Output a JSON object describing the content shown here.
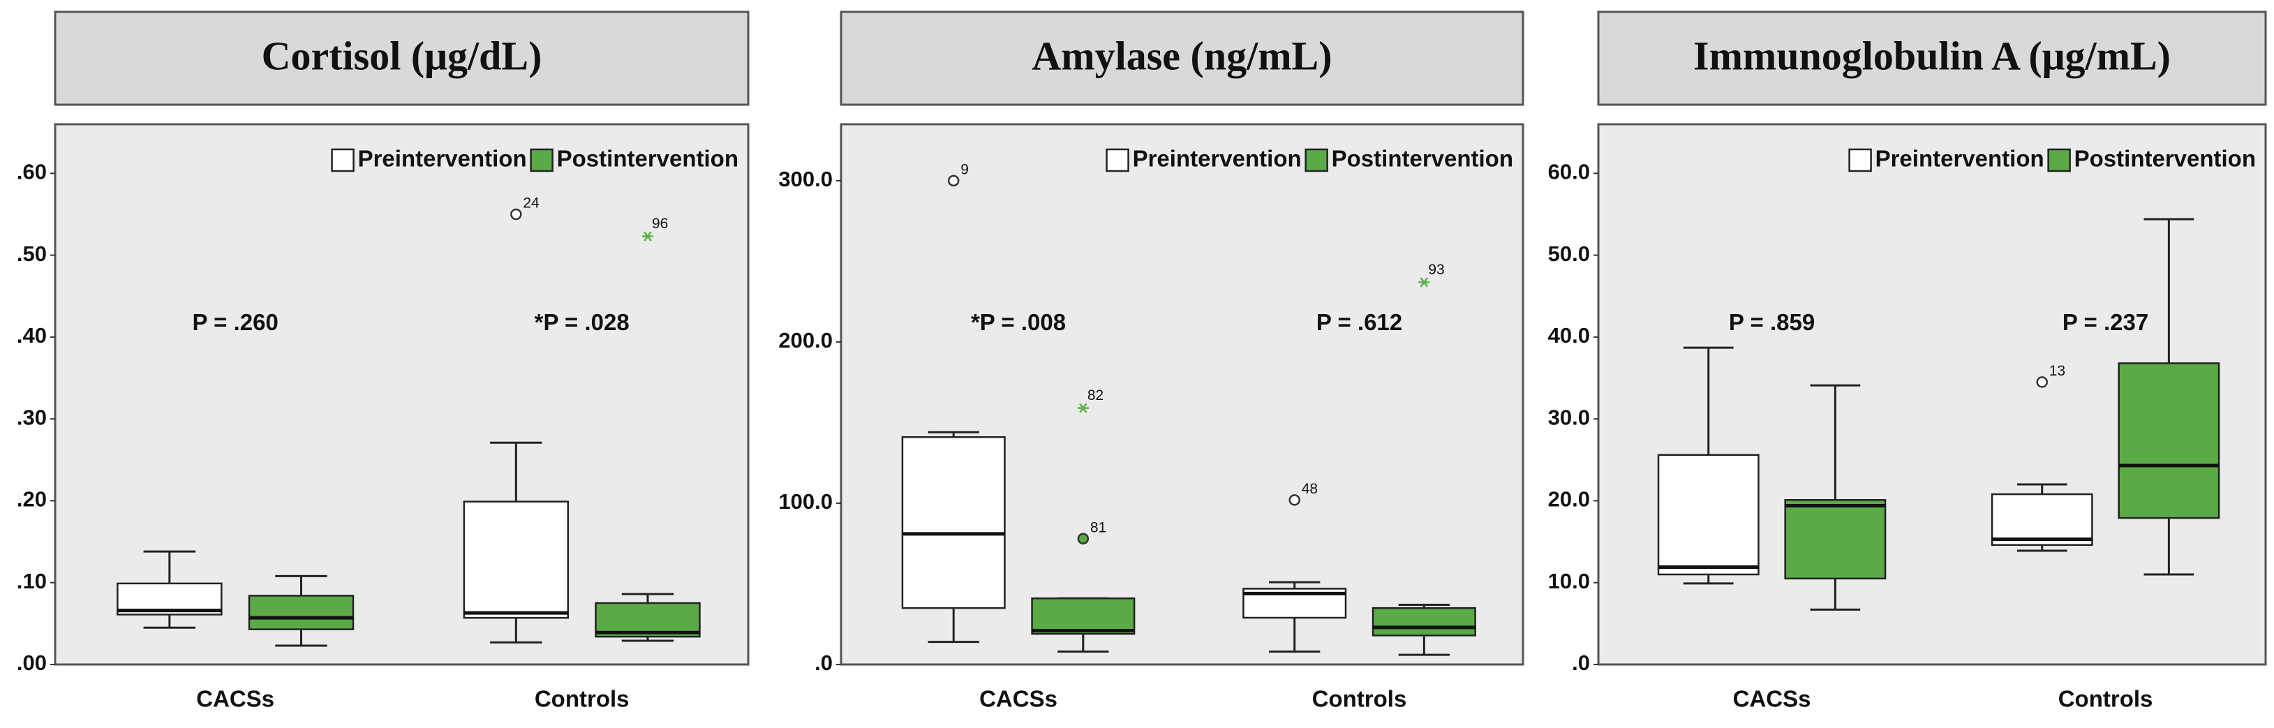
{
  "chart_data": [
    {
      "type": "box",
      "title": "Cortisol (μg/dL)",
      "categories": [
        "CACSs",
        "Controls"
      ],
      "annotations": [
        "P = .260",
        "*P = .028"
      ],
      "ylim": [
        0,
        0.66
      ],
      "yticks": [
        {
          "value": 0,
          "label": ".00"
        },
        {
          "value": 0.1,
          "label": ".10"
        },
        {
          "value": 0.2,
          "label": ".20"
        },
        {
          "value": 0.3,
          "label": ".30"
        },
        {
          "value": 0.4,
          "label": ".40"
        },
        {
          "value": 0.5,
          "label": ".50"
        },
        {
          "value": 0.6,
          "label": ".60"
        }
      ],
      "series": [
        {
          "name": "Preintervention",
          "color": "#ffffff",
          "boxes": [
            {
              "min": 0.045,
              "q1": 0.061,
              "median": 0.066,
              "q3": 0.099,
              "max": 0.138,
              "outliers": []
            },
            {
              "min": 0.027,
              "q1": 0.057,
              "median": 0.063,
              "q3": 0.199,
              "max": 0.271,
              "outliers": [
                {
                  "value": 0.55,
                  "label": "24",
                  "marker": "circle"
                }
              ]
            }
          ]
        },
        {
          "name": "Postintervention",
          "color": "#5aab46",
          "boxes": [
            {
              "min": 0.023,
              "q1": 0.043,
              "median": 0.057,
              "q3": 0.084,
              "max": 0.108,
              "outliers": []
            },
            {
              "min": 0.029,
              "q1": 0.034,
              "median": 0.039,
              "q3": 0.075,
              "max": 0.086,
              "outliers": [
                {
                  "value": 0.523,
                  "label": "96",
                  "marker": "star"
                }
              ]
            }
          ]
        }
      ]
    },
    {
      "type": "box",
      "title": "Amylase (ng/mL)",
      "categories": [
        "CACSs",
        "Controls"
      ],
      "annotations": [
        "*P = .008",
        "P = .612"
      ],
      "ylim": [
        0,
        335
      ],
      "yticks": [
        {
          "value": 0,
          "label": ".0"
        },
        {
          "value": 100,
          "label": "100.0"
        },
        {
          "value": 200,
          "label": "200.0"
        },
        {
          "value": 300,
          "label": "300.0"
        }
      ],
      "series": [
        {
          "name": "Preintervention",
          "color": "#ffffff",
          "boxes": [
            {
              "min": 14,
              "q1": 35,
              "median": 81,
              "q3": 141,
              "max": 144,
              "outliers": [
                {
                  "value": 300,
                  "label": "9",
                  "marker": "circle"
                }
              ]
            },
            {
              "min": 8,
              "q1": 29,
              "median": 44,
              "q3": 47,
              "max": 51,
              "outliers": [
                {
                  "value": 102,
                  "label": "48",
                  "marker": "circle"
                }
              ]
            }
          ]
        },
        {
          "name": "Postintervention",
          "color": "#5aab46",
          "boxes": [
            {
              "min": 8,
              "q1": 19,
              "median": 21,
              "q3": 41,
              "max": 41,
              "outliers": [
                {
                  "value": 159,
                  "label": "82",
                  "marker": "star"
                },
                {
                  "value": 78,
                  "label": "81",
                  "marker": "filled-circle"
                }
              ]
            },
            {
              "min": 6,
              "q1": 18,
              "median": 23,
              "q3": 35,
              "max": 37,
              "outliers": [
                {
                  "value": 237,
                  "label": "93",
                  "marker": "star"
                }
              ]
            }
          ]
        }
      ]
    },
    {
      "type": "box",
      "title": "Immunoglobulin A  (μg/mL)",
      "categories": [
        "CACSs",
        "Controls"
      ],
      "annotations": [
        "P = .859",
        "P = .237"
      ],
      "ylim": [
        0,
        66
      ],
      "yticks": [
        {
          "value": 0,
          "label": ".0"
        },
        {
          "value": 10,
          "label": "10.0"
        },
        {
          "value": 20,
          "label": "20.0"
        },
        {
          "value": 30,
          "label": "30.0"
        },
        {
          "value": 40,
          "label": "40.0"
        },
        {
          "value": 50,
          "label": "50.0"
        },
        {
          "value": 60,
          "label": "60.0"
        }
      ],
      "series": [
        {
          "name": "Preintervention",
          "color": "#ffffff",
          "boxes": [
            {
              "min": 9.9,
              "q1": 11.0,
              "median": 11.9,
              "q3": 25.6,
              "max": 38.7,
              "outliers": []
            },
            {
              "min": 13.9,
              "q1": 14.6,
              "median": 15.3,
              "q3": 20.8,
              "max": 22.0,
              "outliers": [
                {
                  "value": 34.5,
                  "label": "13",
                  "marker": "circle"
                }
              ]
            }
          ]
        },
        {
          "name": "Postintervention",
          "color": "#5aab46",
          "boxes": [
            {
              "min": 6.7,
              "q1": 10.5,
              "median": 19.4,
              "q3": 20.1,
              "max": 34.1,
              "outliers": []
            },
            {
              "min": 11.0,
              "q1": 17.9,
              "median": 24.3,
              "q3": 36.8,
              "max": 54.4,
              "outliers": []
            }
          ]
        }
      ]
    }
  ]
}
